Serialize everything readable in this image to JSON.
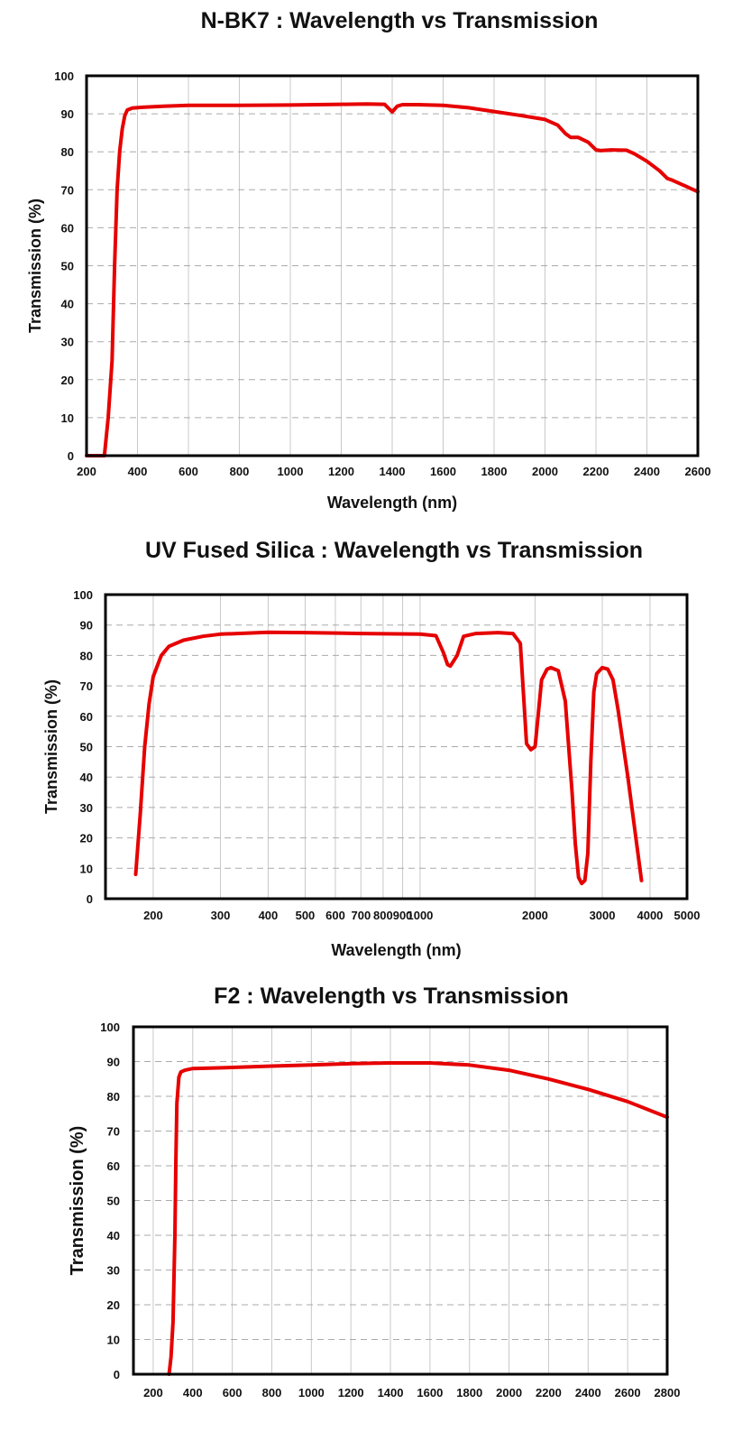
{
  "chart_data": [
    {
      "type": "line",
      "title": "N-BK7 : Wavelength vs Transmission",
      "xlabel": "Wavelength (nm)",
      "ylabel": "Transmission (%)",
      "xscale": "linear",
      "xlim": [
        200,
        2600
      ],
      "ylim": [
        0,
        100
      ],
      "x_ticks": [
        200,
        400,
        600,
        800,
        1000,
        1200,
        1400,
        1600,
        1800,
        2000,
        2200,
        2400,
        2600
      ],
      "x_tick_labels": [
        "200",
        "400",
        "600",
        "800",
        "1000",
        "1200",
        "1400",
        "1600",
        "1800",
        "2000",
        "2200",
        "2400",
        "2600"
      ],
      "y_ticks": [
        0,
        10,
        20,
        30,
        40,
        50,
        60,
        70,
        80,
        90,
        100
      ],
      "y_tick_labels": [
        "0",
        "10",
        "20",
        "30",
        "40",
        "50",
        "60",
        "70",
        "80",
        "90",
        "100"
      ],
      "grid": true,
      "series": [
        {
          "name": "N-BK7",
          "color": "#e60000",
          "x": [
            200,
            270,
            285,
            300,
            310,
            320,
            330,
            340,
            350,
            360,
            380,
            420,
            500,
            600,
            800,
            1000,
            1200,
            1300,
            1370,
            1400,
            1420,
            1440,
            1500,
            1600,
            1700,
            1800,
            1900,
            2000,
            2050,
            2080,
            2100,
            2130,
            2170,
            2200,
            2220,
            2260,
            2320,
            2350,
            2400,
            2450,
            2480,
            2500,
            2550,
            2600
          ],
          "y": [
            0,
            0,
            10,
            25,
            50,
            70,
            80,
            86,
            89.5,
            91,
            91.5,
            91.7,
            92,
            92.2,
            92.2,
            92.3,
            92.5,
            92.6,
            92.5,
            90.5,
            92,
            92.4,
            92.4,
            92.2,
            91.6,
            90.6,
            89.6,
            88.5,
            87,
            84.8,
            83.8,
            83.8,
            82.5,
            80.5,
            80.3,
            80.5,
            80.4,
            79.5,
            77.5,
            75,
            73,
            72.5,
            71,
            69.5
          ]
        }
      ]
    },
    {
      "type": "line",
      "title": "UV Fused Silica : Wavelength vs Transmission",
      "xlabel": "Wavelength (nm)",
      "ylabel": "Transmission (%)",
      "xscale": "log",
      "xlim": [
        150,
        5000
      ],
      "ylim": [
        0,
        100
      ],
      "x_ticks": [
        200,
        300,
        400,
        500,
        600,
        700,
        800,
        900,
        1000,
        2000,
        3000,
        4000,
        5000
      ],
      "x_tick_labels": [
        "200",
        "300",
        "400",
        "500",
        "600",
        "700",
        "800",
        "900",
        "1000",
        "2000",
        "3000",
        "4000",
        "5000"
      ],
      "y_ticks": [
        0,
        10,
        20,
        30,
        40,
        50,
        60,
        70,
        80,
        90,
        100
      ],
      "y_tick_labels": [
        "0",
        "10",
        "20",
        "30",
        "40",
        "50",
        "60",
        "70",
        "80",
        "90",
        "100"
      ],
      "grid": true,
      "series": [
        {
          "name": "UV Fused Silica",
          "color": "#e60000",
          "x": [
            180,
            185,
            190,
            195,
            200,
            210,
            220,
            240,
            270,
            300,
            400,
            500,
            700,
            1000,
            1100,
            1150,
            1180,
            1200,
            1250,
            1300,
            1400,
            1600,
            1750,
            1830,
            1870,
            1900,
            1950,
            2000,
            2080,
            2150,
            2200,
            2300,
            2400,
            2500,
            2550,
            2600,
            2650,
            2700,
            2750,
            2800,
            2850,
            2900,
            3000,
            3100,
            3200,
            3300,
            3500,
            3800
          ],
          "y": [
            8,
            28,
            50,
            64,
            73,
            80,
            83,
            85,
            86.3,
            87,
            87.6,
            87.5,
            87.2,
            87,
            86.5,
            81,
            77,
            76.5,
            80,
            86.3,
            87.2,
            87.5,
            87.2,
            84,
            65,
            51,
            49,
            50,
            72,
            75.5,
            76,
            75,
            65,
            35,
            18,
            7,
            5,
            6,
            15,
            45,
            68,
            74,
            76,
            75.5,
            72,
            62,
            40,
            6
          ]
        }
      ]
    },
    {
      "type": "line",
      "title": "F2 : Wavelength vs Transmission",
      "xlabel": "",
      "ylabel": "Transmission (%)",
      "xscale": "linear",
      "xlim": [
        100,
        2800
      ],
      "ylim": [
        0,
        100
      ],
      "x_ticks": [
        200,
        400,
        600,
        800,
        1000,
        1200,
        1400,
        1600,
        1800,
        2000,
        2200,
        2400,
        2600,
        2800
      ],
      "x_tick_labels": [
        "200",
        "400",
        "600",
        "800",
        "1000",
        "1200",
        "1400",
        "1600",
        "1800",
        "2000",
        "2200",
        "2400",
        "2600",
        "2800"
      ],
      "y_ticks": [
        0,
        10,
        20,
        30,
        40,
        50,
        60,
        70,
        80,
        90,
        100
      ],
      "y_tick_labels": [
        "0",
        "10",
        "20",
        "30",
        "40",
        "50",
        "60",
        "70",
        "80",
        "90",
        "100"
      ],
      "grid": true,
      "series": [
        {
          "name": "F2",
          "color": "#e60000",
          "x": [
            280,
            290,
            300,
            310,
            315,
            320,
            330,
            340,
            360,
            400,
            600,
            800,
            1000,
            1200,
            1400,
            1600,
            1800,
            2000,
            2200,
            2400,
            2600,
            2800
          ],
          "y": [
            0,
            5,
            15,
            40,
            62,
            78,
            85.5,
            87,
            87.5,
            88,
            88.3,
            88.7,
            89,
            89.4,
            89.6,
            89.6,
            89,
            87.5,
            85,
            82,
            78.5,
            74
          ]
        }
      ]
    }
  ]
}
